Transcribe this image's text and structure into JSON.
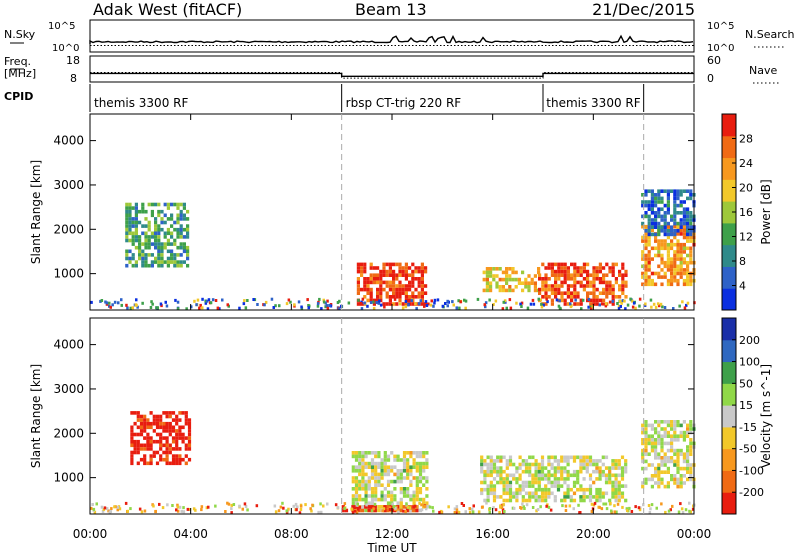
{
  "header": {
    "left_title": "Adak West (fitACF)",
    "center_title": "Beam 13",
    "right_title": "21/Dec/2015"
  },
  "chart_data": [
    {
      "type": "line",
      "name": "nsky-panel",
      "left_label": "N.Sky",
      "right_label": "N.Search",
      "left_ticks": [
        "10^5",
        "10^0"
      ],
      "right_ticks": [
        "10^5",
        "10^0"
      ],
      "x_range_hours": [
        0,
        24
      ]
    },
    {
      "type": "line",
      "name": "freq-panel",
      "left_label_1": "Freq.",
      "left_label_2": "[MHz]",
      "right_label": "Nave",
      "left_ticks": [
        18,
        8
      ],
      "right_ticks": [
        60,
        0
      ],
      "ylim": [
        8,
        18
      ],
      "freq_steps": [
        {
          "start": 0,
          "end": 10,
          "value": 11.3
        },
        {
          "start": 10,
          "end": 18,
          "value": 10.2
        },
        {
          "start": 18,
          "end": 24,
          "value": 11.3
        }
      ],
      "nave_steps": [
        {
          "start": 0,
          "end": 10,
          "value": 22
        },
        {
          "start": 10,
          "end": 18,
          "value": 9
        },
        {
          "start": 18,
          "end": 24,
          "value": 22
        }
      ]
    },
    {
      "type": "table",
      "name": "cpid-strip",
      "label": "CPID",
      "segments": [
        {
          "label": "themis 3300 RF",
          "start": 0,
          "end": 10,
          "align": "left"
        },
        {
          "label": "rbsp CT-trig 220 RF",
          "start": 10,
          "end": 18,
          "align": "left"
        },
        {
          "label": "themis 3300 RF",
          "start": 18,
          "end": 22,
          "align": "right"
        }
      ]
    },
    {
      "type": "heatmap",
      "name": "power-panel",
      "ylabel": "Slant Range [km]",
      "ylim": [
        180,
        4600
      ],
      "yticks": [
        1000,
        2000,
        3000,
        4000
      ],
      "colorbar_label": "Power [dB]",
      "colorbar_range": [
        0,
        32
      ],
      "colorbar_ticks": [
        4,
        8,
        12,
        16,
        20,
        24,
        28
      ],
      "colors": [
        "#0a2fe0",
        "#2e62c8",
        "#2f8a8a",
        "#3ea04a",
        "#9ec83a",
        "#f2c82a",
        "#f7981e",
        "#f06a14",
        "#e81d0f"
      ],
      "patches": [
        {
          "t0": 1.4,
          "t1": 3.9,
          "r0": 1200,
          "r1": 2600,
          "level": 0.35
        },
        {
          "t0": 10.6,
          "t1": 13.3,
          "r0": 280,
          "r1": 1250,
          "level": 0.92
        },
        {
          "t0": 15.6,
          "t1": 17.8,
          "r0": 650,
          "r1": 1150,
          "level": 0.62
        },
        {
          "t0": 17.8,
          "t1": 21.3,
          "r0": 280,
          "r1": 1250,
          "level": 0.85
        },
        {
          "t0": 21.9,
          "t1": 24.0,
          "r0": 800,
          "r1": 2100,
          "level": 0.72
        },
        {
          "t0": 21.9,
          "t1": 24.0,
          "r0": 1900,
          "r1": 2900,
          "level": 0.2
        }
      ]
    },
    {
      "type": "heatmap",
      "name": "velocity-panel",
      "xlabel": "Time UT",
      "ylabel": "Slant Range [km]",
      "ylim": [
        180,
        4600
      ],
      "yticks": [
        1000,
        2000,
        3000,
        4000
      ],
      "xlim": [
        0,
        24
      ],
      "xtick_labels": [
        "00:00",
        "04:00",
        "08:00",
        "12:00",
        "16:00",
        "20:00",
        "00:00"
      ],
      "colorbar_label": "Velocity [m s^-1]",
      "colorbar_range": [
        -250,
        250
      ],
      "colorbar_ticks": [
        200,
        100,
        50,
        15,
        -15,
        -50,
        -100,
        -200
      ],
      "colors": [
        "#e81d0f",
        "#f06a14",
        "#f7981e",
        "#f2c82a",
        "#c9c9c9",
        "#90d848",
        "#3ea04a",
        "#2f68c0",
        "#1a2fa8"
      ],
      "patches": [
        {
          "t0": 1.6,
          "t1": 4.0,
          "r0": 1300,
          "r1": 2500,
          "level": 0.02
        },
        {
          "t0": 10.4,
          "t1": 13.4,
          "r0": 280,
          "r1": 1600,
          "level": 0.5
        },
        {
          "t0": 15.5,
          "t1": 21.3,
          "r0": 450,
          "r1": 1500,
          "level": 0.5
        },
        {
          "t0": 21.9,
          "t1": 24.0,
          "r0": 800,
          "r1": 2300,
          "level": 0.5
        },
        {
          "t0": 10.0,
          "t1": 13.0,
          "r0": 230,
          "r1": 380,
          "level": 0.1
        }
      ]
    }
  ]
}
